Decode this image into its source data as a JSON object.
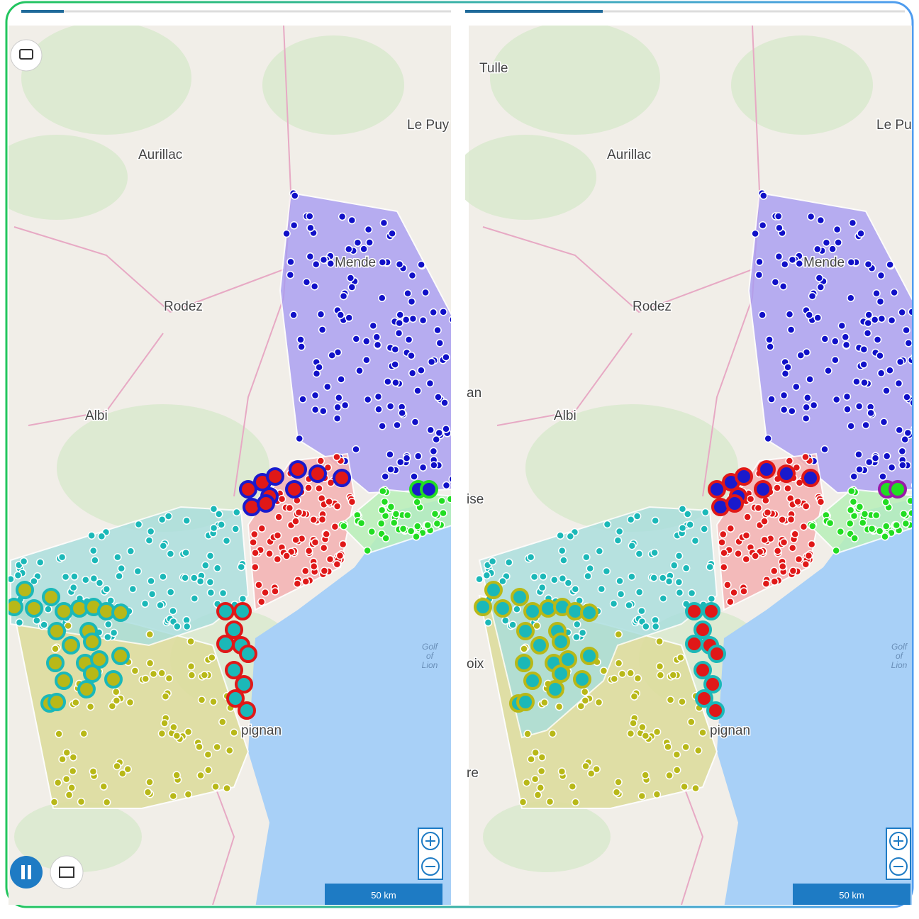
{
  "left_map": {
    "places": [
      "Aurillac",
      "Le Puy",
      "Mende",
      "Rodez",
      "Albi",
      "pignan"
    ],
    "sea_label": [
      "Golf",
      "of",
      "Lion"
    ],
    "scale": "50 km"
  },
  "right_map": {
    "places": [
      "Tulle",
      "Aurillac",
      "Le Pu",
      "Mende",
      "Rodez",
      "Albi",
      "pignan",
      "an",
      "ise",
      "oix",
      "re"
    ],
    "sea_label": [
      "Golf",
      "of",
      "Lion"
    ],
    "scale": "50 km"
  }
}
